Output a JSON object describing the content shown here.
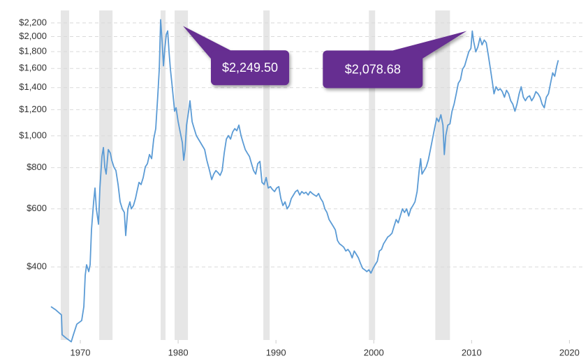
{
  "chart_data": {
    "type": "line",
    "log_scale": true,
    "grid": true,
    "color": "#5b9bd5",
    "shade_color": "#e6e6e6",
    "callout_color": "#662d91",
    "xlim": [
      1967,
      2021.4
    ],
    "ylim": [
      240,
      2400
    ],
    "xticks": [
      1970,
      1980,
      1990,
      2000,
      2010,
      2020
    ],
    "yticks": [
      {
        "value": 400,
        "label": "$400"
      },
      {
        "value": 600,
        "label": "$600"
      },
      {
        "value": 800,
        "label": "$800"
      },
      {
        "value": 1000,
        "label": "$1,000"
      },
      {
        "value": 1200,
        "label": "$1,200"
      },
      {
        "value": 1400,
        "label": "$1,400"
      },
      {
        "value": 1600,
        "label": "$1,600"
      },
      {
        "value": 1800,
        "label": "$1,800"
      },
      {
        "value": 2000,
        "label": "$2,000"
      },
      {
        "value": 2200,
        "label": "$2,200"
      }
    ],
    "shaded": [
      [
        1968.0,
        1968.86
      ],
      [
        1971.93,
        1973.29
      ],
      [
        1978.21,
        1978.71
      ],
      [
        1979.64,
        1981.0
      ],
      [
        1988.71,
        1989.36
      ],
      [
        1999.5,
        2000.14
      ],
      [
        2006.29,
        2007.79
      ]
    ],
    "x": [
      1967.0,
      1967.5,
      1968.07,
      1968.14,
      1968.57,
      1969.07,
      1969.29,
      1969.64,
      1970.14,
      1970.36,
      1970.5,
      1970.64,
      1970.86,
      1971.0,
      1971.14,
      1971.36,
      1971.5,
      1971.64,
      1971.86,
      1972.0,
      1972.21,
      1972.36,
      1972.5,
      1972.64,
      1972.86,
      1973.07,
      1973.21,
      1973.43,
      1973.64,
      1973.86,
      1974.07,
      1974.29,
      1974.5,
      1974.64,
      1974.86,
      1975.07,
      1975.21,
      1975.43,
      1975.64,
      1975.79,
      1976.0,
      1976.21,
      1976.43,
      1976.64,
      1976.86,
      1977.07,
      1977.29,
      1977.5,
      1977.71,
      1977.93,
      1978.07,
      1978.21,
      1978.36,
      1978.5,
      1978.64,
      1978.79,
      1978.93,
      1979.07,
      1979.21,
      1979.36,
      1979.5,
      1979.64,
      1979.79,
      1980.0,
      1980.21,
      1980.43,
      1980.57,
      1980.71,
      1980.86,
      1981.07,
      1981.21,
      1981.43,
      1981.64,
      1981.86,
      1982.07,
      1982.29,
      1982.5,
      1982.71,
      1982.93,
      1983.21,
      1983.43,
      1983.64,
      1983.86,
      1984.07,
      1984.29,
      1984.5,
      1984.71,
      1984.93,
      1985.14,
      1985.36,
      1985.57,
      1985.79,
      1986.0,
      1986.21,
      1986.43,
      1986.64,
      1986.86,
      1987.07,
      1987.29,
      1987.5,
      1987.71,
      1987.93,
      1988.14,
      1988.36,
      1988.57,
      1988.79,
      1989.0,
      1989.21,
      1989.43,
      1989.64,
      1989.86,
      1990.07,
      1990.29,
      1990.5,
      1990.71,
      1990.93,
      1991.14,
      1991.36,
      1991.57,
      1991.79,
      1992.0,
      1992.21,
      1992.43,
      1992.64,
      1992.86,
      1993.07,
      1993.29,
      1993.5,
      1993.71,
      1993.93,
      1994.14,
      1994.36,
      1994.57,
      1994.79,
      1995.0,
      1995.21,
      1995.43,
      1995.64,
      1995.86,
      1996.07,
      1996.29,
      1996.5,
      1996.71,
      1996.93,
      1997.14,
      1997.36,
      1997.57,
      1997.79,
      1998.0,
      1998.21,
      1998.43,
      1998.64,
      1998.86,
      1999.07,
      1999.29,
      1999.5,
      1999.71,
      1999.93,
      2000.14,
      2000.36,
      2000.57,
      2000.79,
      2001.0,
      2001.21,
      2001.43,
      2001.64,
      2001.86,
      2002.07,
      2002.29,
      2002.5,
      2002.71,
      2002.93,
      2003.14,
      2003.36,
      2003.57,
      2003.79,
      2004.0,
      2004.21,
      2004.43,
      2004.64,
      2004.79,
      2004.93,
      2005.14,
      2005.36,
      2005.57,
      2005.79,
      2006.0,
      2006.21,
      2006.43,
      2006.64,
      2006.86,
      2007.07,
      2007.21,
      2007.36,
      2007.57,
      2007.79,
      2008.0,
      2008.21,
      2008.43,
      2008.64,
      2008.86,
      2009.07,
      2009.29,
      2009.5,
      2009.71,
      2009.93,
      2010.07,
      2010.21,
      2010.43,
      2010.64,
      2010.86,
      2011.07,
      2011.29,
      2011.5,
      2011.71,
      2011.93,
      2012.14,
      2012.29,
      2012.5,
      2012.71,
      2012.93,
      2013.14,
      2013.36,
      2013.57,
      2013.79,
      2014.0,
      2014.21,
      2014.43,
      2014.64,
      2014.86,
      2015.07,
      2015.29,
      2015.5,
      2015.71,
      2015.93,
      2016.14,
      2016.36,
      2016.57,
      2016.79,
      2017.0,
      2017.21,
      2017.43,
      2017.64,
      2017.86,
      2018.07,
      2018.29,
      2018.5,
      2018.71,
      2018.86
    ],
    "values": [
      303,
      296,
      286,
      249,
      243,
      237,
      249,
      268,
      275,
      303,
      377,
      406,
      387,
      406,
      518,
      630,
      694,
      600,
      539,
      694,
      865,
      921,
      804,
      765,
      908,
      886,
      843,
      804,
      784,
      711,
      630,
      600,
      585,
      498,
      600,
      630,
      600,
      614,
      645,
      677,
      722,
      711,
      747,
      804,
      823,
      877,
      852,
      977,
      1051,
      1341,
      1591,
      2249.5,
      1934,
      1630,
      1842,
      2030,
      2080,
      1797,
      1591,
      1443,
      1309,
      1187,
      1216,
      1103,
      1026,
      953,
      843,
      908,
      1077,
      1187,
      1277,
      1103,
      1051,
      1001,
      977,
      953,
      930,
      908,
      843,
      784,
      736,
      765,
      784,
      773,
      758,
      784,
      886,
      977,
      1001,
      977,
      1026,
      1051,
      1036,
      1077,
      1001,
      953,
      908,
      886,
      865,
      823,
      784,
      765,
      823,
      836,
      722,
      711,
      747,
      694,
      701,
      687,
      677,
      694,
      701,
      645,
      614,
      630,
      600,
      614,
      645,
      661,
      677,
      684,
      661,
      677,
      668,
      674,
      661,
      677,
      668,
      661,
      655,
      668,
      645,
      630,
      600,
      585,
      557,
      544,
      531,
      518,
      481,
      470,
      465,
      459,
      447,
      452,
      443,
      426,
      447,
      437,
      426,
      410,
      396,
      392,
      387,
      392,
      383,
      396,
      406,
      416,
      447,
      452,
      470,
      481,
      493,
      498,
      506,
      531,
      557,
      544,
      571,
      600,
      585,
      600,
      571,
      600,
      614,
      630,
      677,
      784,
      852,
      765,
      784,
      804,
      843,
      908,
      977,
      1051,
      1131,
      1103,
      1158,
      1077,
      877,
      1001,
      1077,
      1087,
      1187,
      1247,
      1341,
      1443,
      1478,
      1591,
      1630,
      1712,
      1797,
      1842,
      2078.68,
      1934,
      1797,
      1860,
      1981,
      1887,
      1952,
      1915,
      1754,
      1591,
      1443,
      1341,
      1408,
      1374,
      1388,
      1361,
      1309,
      1374,
      1341,
      1277,
      1247,
      1187,
      1247,
      1341,
      1408,
      1309,
      1277,
      1309,
      1322,
      1277,
      1309,
      1361,
      1341,
      1309,
      1247,
      1216,
      1309,
      1341,
      1443,
      1552,
      1515,
      1630,
      1695
    ],
    "annotations": [
      {
        "x": 1978.21,
        "value": 2249.5,
        "label": "$2,249.50"
      },
      {
        "x": 2010.07,
        "value": 2078.68,
        "label": "$2,078.68"
      }
    ]
  }
}
